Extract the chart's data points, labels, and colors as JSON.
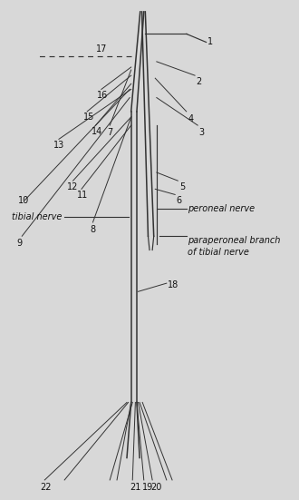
{
  "background_color": "#d8d8d8",
  "line_color": "#333333",
  "text_color": "#111111",
  "figsize": [
    3.3,
    5.51
  ],
  "dpi": 100,
  "xlim": [
    0,
    10
  ],
  "ylim": [
    0,
    18
  ],
  "lw_trunk": 1.1,
  "lw_branch": 0.85,
  "lw_thin": 0.7,
  "fs_label": 7,
  "fs_text": 7,
  "labels": {
    "tibial_nerve": "tibial nerve",
    "peroneal_nerve": "peroneal nerve",
    "paraperoneal": "paraperoneal branch\nof tibial nerve"
  }
}
